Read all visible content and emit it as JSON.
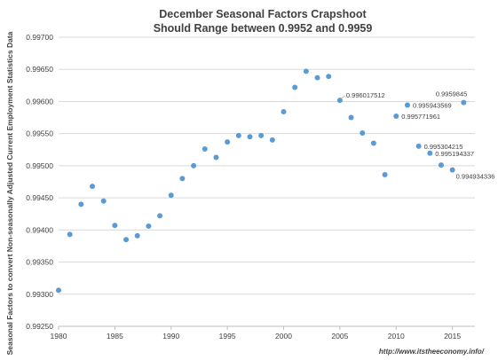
{
  "chart_data": {
    "type": "scatter",
    "title": "December Seasonal Factors Crapshoot",
    "subtitle": "Should Range between 0.9952 and  0.9959",
    "ylabel": "Seasonal Factors to convert Non-seasonally Adjusted Current Employment Statistics Data",
    "xlabel": "",
    "xlim": [
      1980,
      2017
    ],
    "ylim": [
      0.9925,
      0.997
    ],
    "x_ticks": [
      "1980",
      "1985",
      "1990",
      "1995",
      "2000",
      "2005",
      "2010",
      "2015"
    ],
    "y_ticks": [
      "0.99250",
      "0.99300",
      "0.99350",
      "0.99400",
      "0.99450",
      "0.99500",
      "0.99550",
      "0.99600",
      "0.99650",
      "0.99700"
    ],
    "grid": "horizontal",
    "marker_color": "#5b9bd5",
    "series": [
      {
        "points": [
          {
            "x": 1980,
            "y": 0.99306
          },
          {
            "x": 1981,
            "y": 0.99393
          },
          {
            "x": 1982,
            "y": 0.9944
          },
          {
            "x": 1983,
            "y": 0.99468
          },
          {
            "x": 1984,
            "y": 0.99445
          },
          {
            "x": 1985,
            "y": 0.99407
          },
          {
            "x": 1986,
            "y": 0.99385
          },
          {
            "x": 1987,
            "y": 0.99391
          },
          {
            "x": 1988,
            "y": 0.99406
          },
          {
            "x": 1989,
            "y": 0.99422
          },
          {
            "x": 1990,
            "y": 0.99454
          },
          {
            "x": 1991,
            "y": 0.9948
          },
          {
            "x": 1992,
            "y": 0.995
          },
          {
            "x": 1993,
            "y": 0.99526
          },
          {
            "x": 1994,
            "y": 0.99513
          },
          {
            "x": 1995,
            "y": 0.99537
          },
          {
            "x": 1996,
            "y": 0.99547
          },
          {
            "x": 1997,
            "y": 0.99545
          },
          {
            "x": 1998,
            "y": 0.99547
          },
          {
            "x": 1999,
            "y": 0.9954
          },
          {
            "x": 2000,
            "y": 0.99584
          },
          {
            "x": 2001,
            "y": 0.99622
          },
          {
            "x": 2002,
            "y": 0.99647
          },
          {
            "x": 2003,
            "y": 0.99637
          },
          {
            "x": 2004,
            "y": 0.99639
          },
          {
            "x": 2005,
            "y": 0.996017512,
            "label": "0.996017512"
          },
          {
            "x": 2006,
            "y": 0.99575
          },
          {
            "x": 2007,
            "y": 0.99551
          },
          {
            "x": 2008,
            "y": 0.99535
          },
          {
            "x": 2009,
            "y": 0.99486
          },
          {
            "x": 2010,
            "y": 0.995771961,
            "label": "0.995771961"
          },
          {
            "x": 2011,
            "y": 0.995943569,
            "label": "0.995943569"
          },
          {
            "x": 2012,
            "y": 0.995304215,
            "label": "0.995304215"
          },
          {
            "x": 2013,
            "y": 0.995194337,
            "label": "0.995194337"
          },
          {
            "x": 2014,
            "y": 0.99501
          },
          {
            "x": 2015,
            "y": 0.994934336,
            "label": "0.994934336"
          },
          {
            "x": 2016,
            "y": 0.9959845,
            "label": "0.9959845"
          }
        ]
      }
    ],
    "source_note": "http://www.itstheeconomy.info/"
  }
}
